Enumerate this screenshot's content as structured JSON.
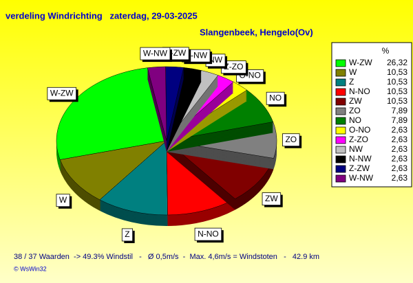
{
  "chart_data": {
    "type": "pie",
    "title": "verdeling Windrichting   zaterdag, 29-03-2025",
    "subtitle": "Slangenbeek, Hengelo(Ov)",
    "legend_header": "%",
    "categories": [
      "W-ZW",
      "W",
      "Z",
      "N-NO",
      "ZW",
      "ZO",
      "NO",
      "O-NO",
      "Z-ZO",
      "NW",
      "N-NW",
      "Z-ZW",
      "W-NW"
    ],
    "values": [
      26.32,
      10.53,
      10.53,
      10.53,
      10.53,
      7.89,
      7.89,
      2.63,
      2.63,
      2.63,
      2.63,
      2.63,
      2.63
    ],
    "value_labels": [
      "26,32",
      "10,53",
      "10,53",
      "10,53",
      "10,53",
      "7,89",
      "7,89",
      "2,63",
      "2,63",
      "2,63",
      "2,63",
      "2,63",
      "2,63"
    ],
    "colors": [
      "#00ff00",
      "#808000",
      "#008080",
      "#ff0000",
      "#800000",
      "#808080",
      "#008000",
      "#ffff00",
      "#ff00ff",
      "#c0c0c0",
      "#000000",
      "#000080",
      "#800080"
    ],
    "footer": "38 / 37 Waarden  -> 49.3% Windstil   -   Ø 0,5m/s  -  Max. 4,6m/s = Windstoten   -   42.9 km",
    "credit": "© WsWin32"
  }
}
